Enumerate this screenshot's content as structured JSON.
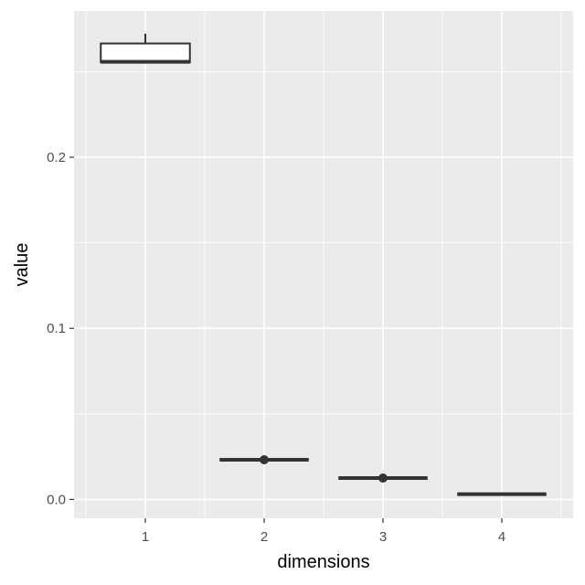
{
  "chart_data": {
    "type": "boxplot",
    "xlabel": "dimensions",
    "ylabel": "value",
    "categories": [
      "1",
      "2",
      "3",
      "4"
    ],
    "ylim": [
      -0.011,
      0.2855
    ],
    "yticks": [
      0.0,
      0.1,
      0.2
    ],
    "ytick_labels": [
      "0.0",
      "0.1",
      "0.2"
    ],
    "grid": true,
    "boxes": [
      {
        "category": "1",
        "min": 0.2555,
        "q1": 0.2555,
        "median": 0.2558,
        "q3": 0.2665,
        "max": 0.2722,
        "outliers": []
      },
      {
        "category": "2",
        "min": 0.0232,
        "q1": 0.0232,
        "median": 0.0232,
        "q3": 0.0232,
        "max": 0.0232,
        "outliers": [
          0.0232
        ]
      },
      {
        "category": "3",
        "min": 0.0125,
        "q1": 0.0125,
        "median": 0.0125,
        "q3": 0.0125,
        "max": 0.0125,
        "outliers": [
          0.0125
        ]
      },
      {
        "category": "4",
        "min": 0.0031,
        "q1": 0.0031,
        "median": 0.0031,
        "q3": 0.0031,
        "max": 0.0031,
        "outliers": []
      }
    ],
    "colors": {
      "panel": "#ebebeb",
      "grid": "#ffffff",
      "box_fill": "#ffffff",
      "box_line": "#333333",
      "tick": "#333333"
    }
  }
}
